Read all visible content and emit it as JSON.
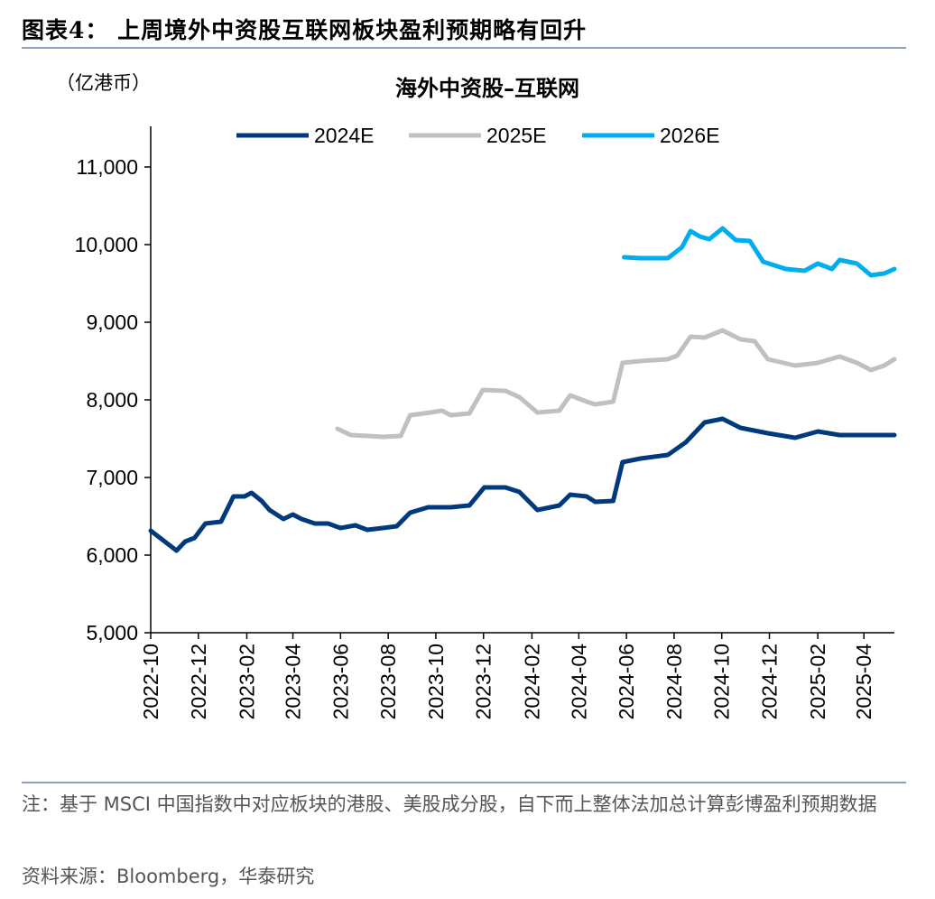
{
  "figure_title": "图表4：  上周境外中资股互联网板块盈利预期略有回升",
  "unit_label": "（亿港币）",
  "note": "注：基于 MSCI 中国指数中对应板块的港股、美股成分股，自下而上整体法加总计算彭博盈利预期数据",
  "source": "资料来源：Bloomberg，华泰研究",
  "chart_data": {
    "type": "line",
    "title": "海外中资股–互联网",
    "xlabel": "",
    "ylabel": "",
    "ylim": [
      5000,
      11000
    ],
    "yticks": [
      5000,
      6000,
      7000,
      8000,
      9000,
      10000,
      11000
    ],
    "ytick_labels": [
      "5,000",
      "6,000",
      "7,000",
      "8,000",
      "9,000",
      "10,000",
      "11,000"
    ],
    "xlim": [
      "2022-10-01",
      "2025-05-10"
    ],
    "xtick_labels": [
      "2022-10",
      "2022-12",
      "2023-02",
      "2023-04",
      "2023-06",
      "2023-08",
      "2023-10",
      "2023-12",
      "2024-02",
      "2024-04",
      "2024-06",
      "2024-08",
      "2024-10",
      "2024-12",
      "2025-02",
      "2025-04"
    ],
    "legend_position": "top",
    "grid": false,
    "series": [
      {
        "name": "2024E",
        "color": "#003a7d",
        "points": [
          [
            "2022-10-01",
            6314
          ],
          [
            "2022-10-16",
            6198
          ],
          [
            "2022-11-03",
            6058
          ],
          [
            "2022-11-14",
            6174
          ],
          [
            "2022-11-26",
            6221
          ],
          [
            "2022-12-10",
            6407
          ],
          [
            "2022-12-30",
            6430
          ],
          [
            "2023-01-15",
            6756
          ],
          [
            "2023-01-29",
            6756
          ],
          [
            "2023-02-07",
            6802
          ],
          [
            "2023-02-20",
            6698
          ],
          [
            "2023-03-02",
            6581
          ],
          [
            "2023-03-20",
            6465
          ],
          [
            "2023-04-01",
            6523
          ],
          [
            "2023-04-12",
            6465
          ],
          [
            "2023-04-29",
            6407
          ],
          [
            "2023-05-16",
            6407
          ],
          [
            "2023-06-01",
            6349
          ],
          [
            "2023-06-20",
            6384
          ],
          [
            "2023-07-05",
            6326
          ],
          [
            "2023-07-25",
            6349
          ],
          [
            "2023-08-12",
            6372
          ],
          [
            "2023-08-29",
            6547
          ],
          [
            "2023-09-21",
            6616
          ],
          [
            "2023-10-20",
            6616
          ],
          [
            "2023-11-13",
            6640
          ],
          [
            "2023-12-02",
            6872
          ],
          [
            "2023-12-29",
            6872
          ],
          [
            "2024-01-16",
            6814
          ],
          [
            "2024-02-08",
            6581
          ],
          [
            "2024-03-07",
            6640
          ],
          [
            "2024-03-21",
            6779
          ],
          [
            "2024-04-11",
            6756
          ],
          [
            "2024-04-22",
            6686
          ],
          [
            "2024-05-15",
            6698
          ],
          [
            "2024-05-27",
            7198
          ],
          [
            "2024-06-19",
            7244
          ],
          [
            "2024-07-24",
            7291
          ],
          [
            "2024-08-16",
            7453
          ],
          [
            "2024-09-09",
            7709
          ],
          [
            "2024-10-02",
            7756
          ],
          [
            "2024-10-25",
            7640
          ],
          [
            "2024-11-29",
            7570
          ],
          [
            "2025-01-03",
            7512
          ],
          [
            "2025-02-01",
            7593
          ],
          [
            "2025-03-01",
            7547
          ],
          [
            "2025-05-10",
            7547
          ]
        ]
      },
      {
        "name": "2025E",
        "color": "#c0c0c0",
        "points": [
          [
            "2023-05-28",
            7628
          ],
          [
            "2023-06-14",
            7547
          ],
          [
            "2023-07-07",
            7535
          ],
          [
            "2023-07-25",
            7523
          ],
          [
            "2023-08-17",
            7535
          ],
          [
            "2023-08-29",
            7802
          ],
          [
            "2023-09-16",
            7826
          ],
          [
            "2023-10-09",
            7860
          ],
          [
            "2023-10-20",
            7802
          ],
          [
            "2023-11-13",
            7826
          ],
          [
            "2023-11-30",
            8128
          ],
          [
            "2023-12-29",
            8116
          ],
          [
            "2024-01-16",
            8035
          ],
          [
            "2024-02-08",
            7837
          ],
          [
            "2024-03-07",
            7860
          ],
          [
            "2024-03-21",
            8058
          ],
          [
            "2024-04-11",
            7977
          ],
          [
            "2024-04-22",
            7942
          ],
          [
            "2024-05-15",
            7977
          ],
          [
            "2024-05-27",
            8477
          ],
          [
            "2024-06-19",
            8500
          ],
          [
            "2024-07-24",
            8523
          ],
          [
            "2024-08-05",
            8570
          ],
          [
            "2024-08-22",
            8814
          ],
          [
            "2024-09-09",
            8802
          ],
          [
            "2024-10-02",
            8895
          ],
          [
            "2024-10-25",
            8779
          ],
          [
            "2024-11-12",
            8756
          ],
          [
            "2024-11-29",
            8523
          ],
          [
            "2025-01-03",
            8442
          ],
          [
            "2025-02-01",
            8477
          ],
          [
            "2025-03-01",
            8558
          ],
          [
            "2025-03-23",
            8477
          ],
          [
            "2025-04-10",
            8384
          ],
          [
            "2025-04-27",
            8442
          ],
          [
            "2025-05-10",
            8523
          ]
        ]
      },
      {
        "name": "2026E",
        "color": "#00aeef",
        "points": [
          [
            "2024-05-29",
            9837
          ],
          [
            "2024-06-19",
            9826
          ],
          [
            "2024-07-24",
            9826
          ],
          [
            "2024-08-11",
            9965
          ],
          [
            "2024-08-22",
            10174
          ],
          [
            "2024-09-03",
            10105
          ],
          [
            "2024-09-15",
            10070
          ],
          [
            "2024-10-02",
            10209
          ],
          [
            "2024-10-19",
            10058
          ],
          [
            "2024-11-06",
            10047
          ],
          [
            "2024-11-23",
            9779
          ],
          [
            "2024-12-22",
            9686
          ],
          [
            "2025-01-15",
            9663
          ],
          [
            "2025-02-01",
            9756
          ],
          [
            "2025-02-19",
            9686
          ],
          [
            "2025-03-01",
            9802
          ],
          [
            "2025-03-23",
            9756
          ],
          [
            "2025-04-10",
            9605
          ],
          [
            "2025-04-27",
            9628
          ],
          [
            "2025-05-10",
            9686
          ]
        ]
      }
    ]
  }
}
